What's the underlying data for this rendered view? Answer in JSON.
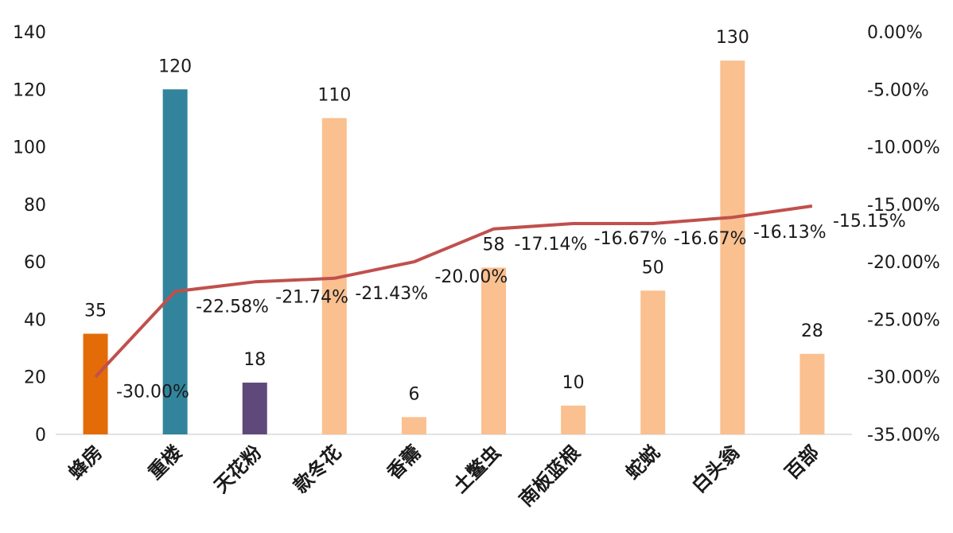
{
  "chart_data": {
    "type": "bar",
    "categories": [
      "蜂房",
      "重楼",
      "天花粉",
      "款冬花",
      "香薷",
      "土鳖虫",
      "南板蓝根",
      "蛇蜕",
      "白头翁",
      "百部"
    ],
    "series": [
      {
        "type": "bar",
        "axis": "left",
        "values": [
          35,
          120,
          18,
          110,
          6,
          58,
          10,
          50,
          130,
          28
        ],
        "data_labels": [
          "35",
          "120",
          "18",
          "110",
          "6",
          "58",
          "10",
          "50",
          "130",
          "28"
        ],
        "colors": [
          "#E36C09",
          "#31849B",
          "#5F497A",
          "#FAC090",
          "#FAC090",
          "#FAC090",
          "#FAC090",
          "#FAC090",
          "#FAC090",
          "#FAC090"
        ]
      },
      {
        "type": "line",
        "axis": "right",
        "values": [
          -30.0,
          -22.58,
          -21.74,
          -21.43,
          -20.0,
          -17.14,
          -16.67,
          -16.67,
          -16.13,
          -15.15
        ],
        "data_labels": [
          "-30.00%",
          "-22.58%",
          "-21.74%",
          "-21.43%",
          "-20.00%",
          "-17.14%",
          "-16.67%",
          "-16.67%",
          "-16.13%",
          "-15.15%"
        ],
        "color": "#C0504D"
      }
    ],
    "y_left": {
      "range": [
        0,
        140
      ],
      "ticks": [
        0,
        20,
        40,
        60,
        80,
        100,
        120,
        140
      ],
      "tick_labels": [
        "0",
        "20",
        "40",
        "60",
        "80",
        "100",
        "120",
        "140"
      ]
    },
    "y_right": {
      "range": [
        -35,
        0
      ],
      "ticks": [
        0,
        -5,
        -10,
        -15,
        -20,
        -25,
        -30,
        -35
      ],
      "tick_labels": [
        "0.00%",
        "-5.00%",
        "-10.00%",
        "-15.00%",
        "-20.00%",
        "-25.00%",
        "-30.00%",
        "-35.00%"
      ]
    },
    "grid": false,
    "legend": "none",
    "title": "",
    "axis_line_color": "#D9D9D9"
  }
}
